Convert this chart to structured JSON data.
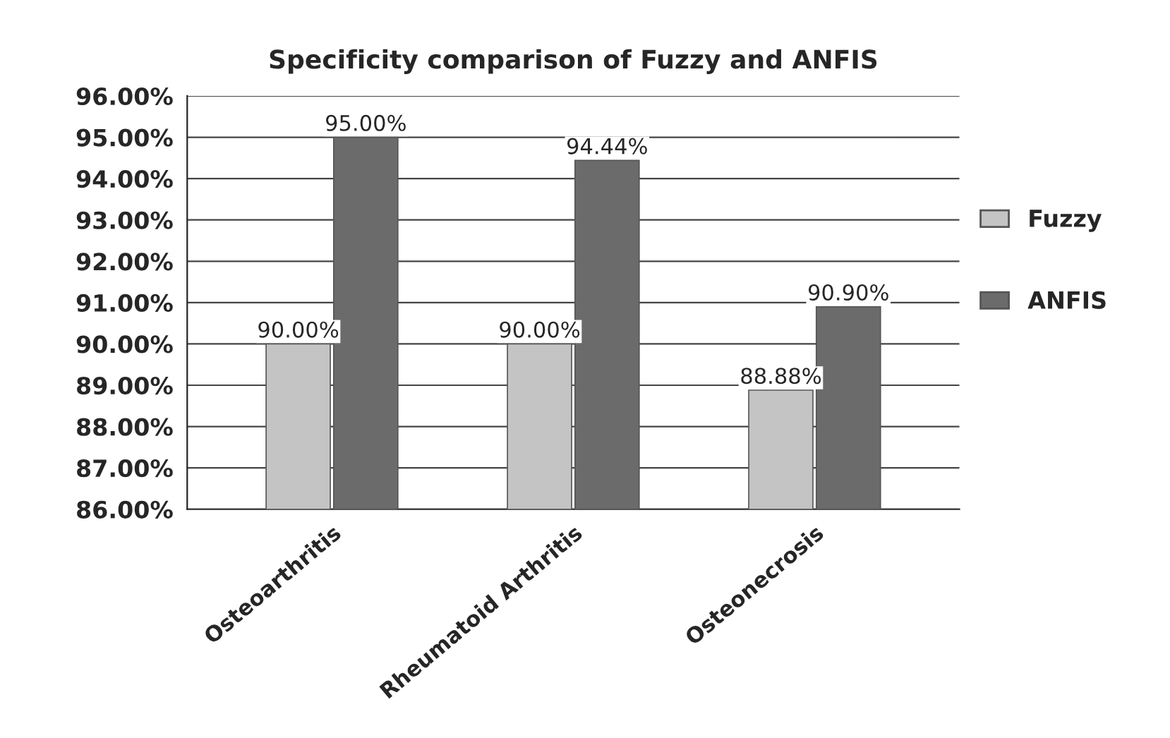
{
  "chart_data": {
    "type": "bar",
    "title": "Specificity comparison of Fuzzy and ANFIS",
    "categories": [
      "Osteoarthritis",
      "Rheumatoid Arthritis",
      "Osteonecrosis"
    ],
    "series": [
      {
        "name": "Fuzzy",
        "color": "#c4c4c4",
        "values": [
          90.0,
          90.0,
          88.88
        ],
        "value_labels": [
          "90.00%",
          "90.00%",
          "88.88%"
        ]
      },
      {
        "name": "ANFIS",
        "color": "#6b6b6b",
        "values": [
          95.0,
          94.44,
          90.9
        ],
        "value_labels": [
          "95.00%",
          "94.44%",
          "90.90%"
        ]
      }
    ],
    "ylim": [
      86,
      96
    ],
    "yticks": [
      {
        "value": 86,
        "label": "86.00%"
      },
      {
        "value": 87,
        "label": "87.00%"
      },
      {
        "value": 88,
        "label": "88.00%"
      },
      {
        "value": 89,
        "label": "89.00%"
      },
      {
        "value": 90,
        "label": "90.00%"
      },
      {
        "value": 91,
        "label": "91.00%"
      },
      {
        "value": 92,
        "label": "92.00%"
      },
      {
        "value": 93,
        "label": "93.00%"
      },
      {
        "value": 94,
        "label": "94.00%"
      },
      {
        "value": 95,
        "label": "95.00%"
      },
      {
        "value": 96,
        "label": "96.00%"
      }
    ],
    "grid": "y",
    "legend": "right"
  }
}
